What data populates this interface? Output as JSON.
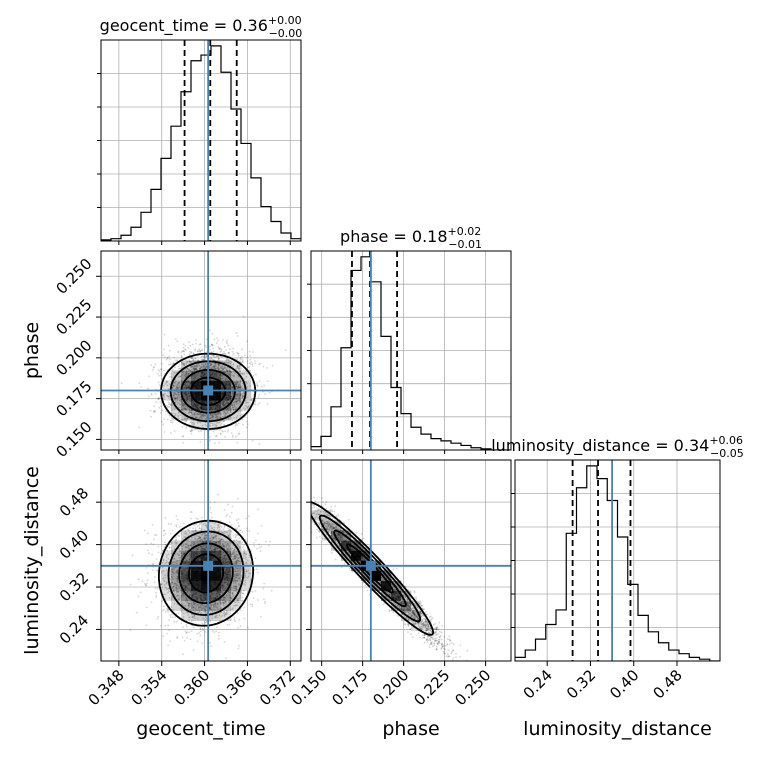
{
  "colors": {
    "truth": "#4682b4",
    "grid": "#b0b0b0",
    "line": "#000000",
    "background": "#ffffff"
  },
  "chart_data": {
    "type": "corner",
    "parameters": [
      "geocent_time",
      "phase",
      "luminosity_distance"
    ],
    "truths": {
      "geocent_time": 0.3605,
      "phase": 0.18,
      "luminosity_distance": 0.36
    },
    "axes": {
      "geocent_time": {
        "label": "geocent_time",
        "range": [
          0.3455,
          0.3735
        ],
        "ticks": [
          0.348,
          0.354,
          0.36,
          0.366,
          0.372
        ],
        "tick_labels": [
          "0.348",
          "0.354",
          "0.360",
          "0.366",
          "0.372"
        ]
      },
      "phase": {
        "label": "phase",
        "range": [
          0.1435,
          0.2655
        ],
        "ticks": [
          0.15,
          0.175,
          0.2,
          0.225,
          0.25
        ],
        "tick_labels": [
          "0.150",
          "0.175",
          "0.200",
          "0.225",
          "0.250"
        ]
      },
      "luminosity_distance": {
        "label": "luminosity_distance",
        "range": [
          0.1805,
          0.5595
        ],
        "ticks": [
          0.24,
          0.32,
          0.4,
          0.48
        ],
        "tick_labels": [
          "0.24",
          "0.32",
          "0.40",
          "0.48"
        ]
      }
    },
    "marginals": [
      {
        "parameter": "geocent_time",
        "title_prefix": "geocent_time = ",
        "median": "0.36",
        "plus": "+0.00",
        "minus": "−0.00",
        "quantiles": [
          0.3572,
          0.3608,
          0.3645
        ],
        "bin_edges": [
          0.3455,
          0.3469,
          0.3483,
          0.3497,
          0.3511,
          0.3525,
          0.3539,
          0.3553,
          0.3567,
          0.3581,
          0.3595,
          0.3609,
          0.3623,
          0.3637,
          0.3651,
          0.3665,
          0.3679,
          0.3693,
          0.3707,
          0.3721,
          0.3735
        ],
        "counts": [
          1,
          2,
          5,
          12,
          25,
          45,
          72,
          100,
          130,
          157,
          162,
          170,
          147,
          115,
          85,
          55,
          30,
          17,
          7,
          2
        ]
      },
      {
        "parameter": "phase",
        "title_prefix": "phase = ",
        "median": "0.18",
        "plus": "+0.02",
        "minus": "−0.01",
        "quantiles": [
          0.1685,
          0.1795,
          0.196
        ],
        "bin_edges": [
          0.1435,
          0.1496,
          0.1557,
          0.1618,
          0.1679,
          0.174,
          0.1801,
          0.1862,
          0.1923,
          0.1984,
          0.2045,
          0.2106,
          0.2167,
          0.2228,
          0.2289,
          0.235,
          0.2411,
          0.2472,
          0.2533,
          0.2594,
          0.2655
        ],
        "counts": [
          3,
          12,
          38,
          90,
          158,
          170,
          148,
          100,
          55,
          32,
          20,
          14,
          10,
          8,
          6,
          4,
          2,
          1,
          0,
          0
        ]
      },
      {
        "parameter": "luminosity_distance",
        "title_prefix": "luminosity_distance = ",
        "median": "0.34",
        "plus": "+0.06",
        "minus": "−0.05",
        "quantiles": [
          0.287,
          0.334,
          0.394
        ],
        "bin_edges": [
          0.1805,
          0.19945,
          0.2184,
          0.23735,
          0.2563,
          0.27525,
          0.2942,
          0.31315,
          0.3321,
          0.35105,
          0.37,
          0.38895,
          0.4079,
          0.42685,
          0.4458,
          0.46475,
          0.4837,
          0.50265,
          0.5216,
          0.54055,
          0.5595
        ],
        "counts": [
          2,
          6,
          12,
          20,
          28,
          70,
          95,
          107,
          100,
          88,
          68,
          42,
          25,
          16,
          10,
          6,
          4,
          2,
          1,
          0
        ]
      }
    ],
    "joints": [
      {
        "x": "geocent_time",
        "y": "phase",
        "center": [
          0.3605,
          0.1795
        ],
        "sigma": [
          0.003,
          0.0105
        ],
        "rho": 0.0,
        "sample_count": 2800,
        "contour_levels": [
          0.8,
          1.25,
          1.75,
          2.2
        ]
      },
      {
        "x": "geocent_time",
        "y": "luminosity_distance",
        "center": [
          0.3602,
          0.346
        ],
        "sigma": [
          0.003,
          0.045
        ],
        "rho": 0.05,
        "sample_count": 2800,
        "contour_levels": [
          0.8,
          1.25,
          1.75,
          2.2
        ]
      },
      {
        "x": "phase",
        "y": "luminosity_distance",
        "center": [
          0.1795,
          0.355
        ],
        "sigma": [
          0.0175,
          0.057
        ],
        "rho": -0.96,
        "sample_count": 2200,
        "contour_levels": [
          0.8,
          1.25,
          1.75,
          2.2
        ]
      }
    ],
    "grid": true,
    "tick_rotation_deg": 45
  }
}
